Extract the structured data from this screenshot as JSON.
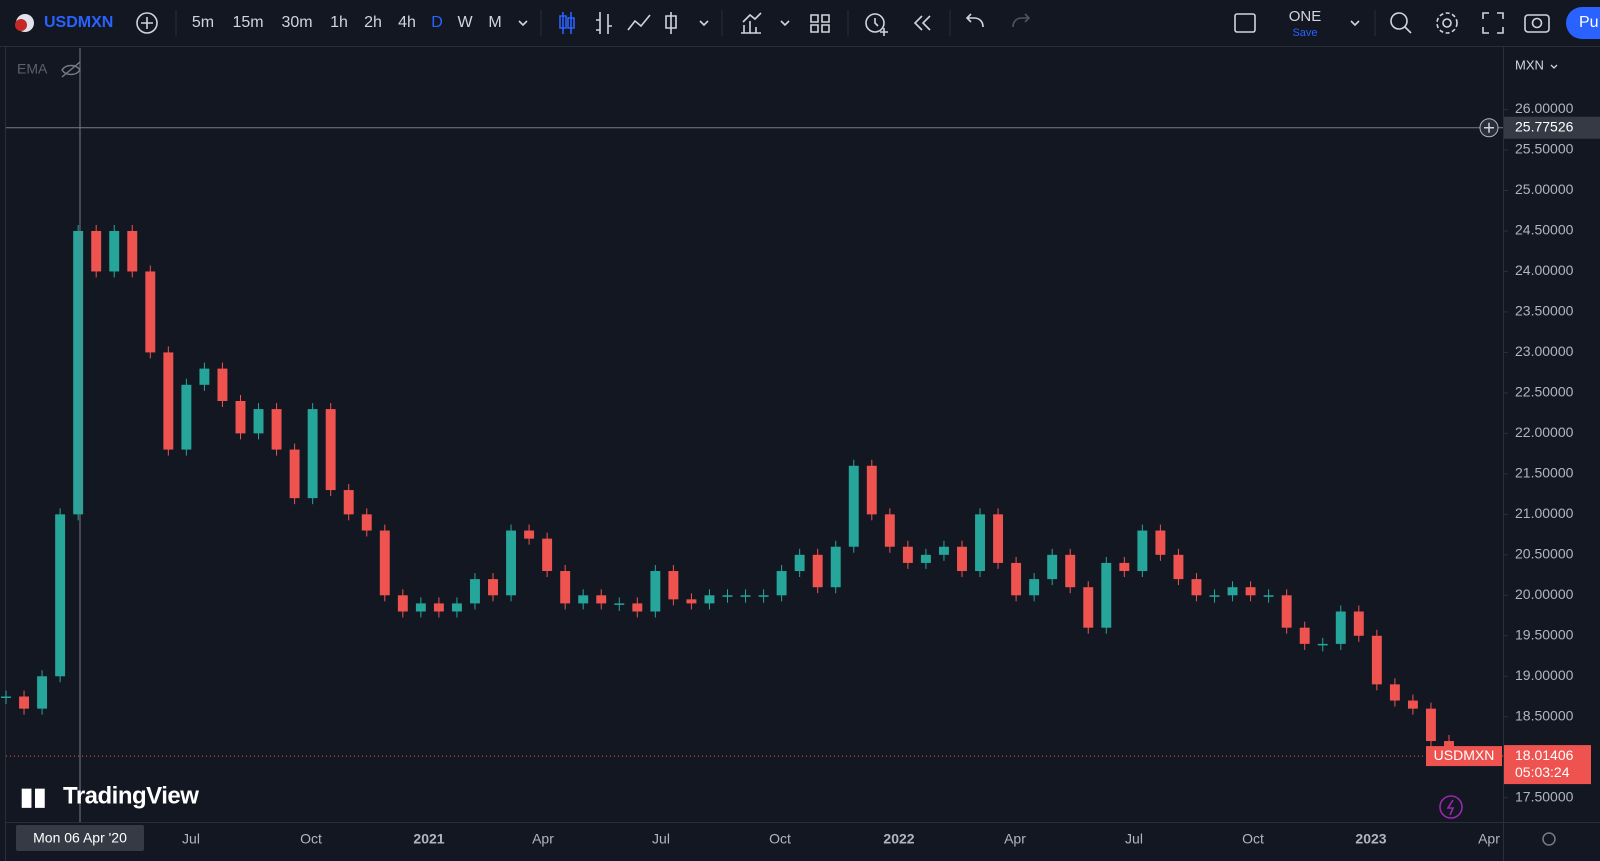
{
  "toolbar": {
    "symbol": "USDMXN",
    "intervals": [
      "5m",
      "15m",
      "30m",
      "1h",
      "2h",
      "4h",
      "D",
      "W",
      "M"
    ],
    "layout_name": "ONE",
    "save": "Save",
    "publish": "Pu"
  },
  "indicator": "EMA",
  "brand": "TradingView",
  "chart_data": {
    "type": "candlestick",
    "symbol": "USDMXN",
    "currency": "MXN",
    "crosshair_price": 25.77526,
    "crosshair_date": "Mon 06 Apr '20",
    "last_price": 18.01406,
    "countdown": "05:03:24",
    "up_color": "#26a69a",
    "down_color": "#ef5350",
    "values": [
      18.75,
      18.6,
      19.0,
      21.0,
      24.5,
      24.0,
      24.5,
      24.0,
      23.0,
      21.8,
      22.6,
      22.8,
      22.4,
      22.0,
      22.3,
      21.8,
      21.2,
      22.3,
      21.3,
      21.0,
      20.8,
      20.0,
      19.8,
      19.9,
      19.8,
      19.9,
      20.2,
      20.0,
      20.8,
      20.7,
      20.3,
      19.9,
      20.0,
      19.9,
      19.9,
      19.8,
      20.3,
      19.95,
      19.9,
      20.0,
      20.0,
      20.0,
      20.0,
      20.3,
      20.5,
      20.1,
      20.6,
      21.6,
      21.0,
      20.6,
      20.4,
      20.5,
      20.6,
      20.3,
      21.0,
      20.4,
      20.0,
      20.2,
      20.5,
      20.1,
      19.6,
      20.4,
      20.3,
      20.8,
      20.5,
      20.2,
      20.0,
      20.0,
      20.1,
      20.0,
      20.0,
      19.6,
      19.4,
      19.4,
      19.8,
      19.5,
      18.9,
      18.7,
      18.6,
      18.2,
      18.01
    ],
    "xticks": [
      "Jul",
      "Oct",
      "2021",
      "Apr",
      "Jul",
      "Oct",
      "2022",
      "Apr",
      "Jul",
      "Oct",
      "2023",
      "Apr"
    ],
    "ylim": [
      17.2,
      26.76
    ],
    "yticks": [
      {
        "value": 26,
        "label": "26.00000"
      },
      {
        "value": 25.5,
        "label": "25.50000"
      },
      {
        "value": 25,
        "label": "25.00000"
      },
      {
        "value": 24.5,
        "label": "24.50000"
      },
      {
        "value": 24,
        "label": "24.00000"
      },
      {
        "value": 23.5,
        "label": "23.50000"
      },
      {
        "value": 23,
        "label": "23.00000"
      },
      {
        "value": 22.5,
        "label": "22.50000"
      },
      {
        "value": 22,
        "label": "22.00000"
      },
      {
        "value": 21.5,
        "label": "21.50000"
      },
      {
        "value": 21,
        "label": "21.00000"
      },
      {
        "value": 20.5,
        "label": "20.50000"
      },
      {
        "value": 20,
        "label": "20.00000"
      },
      {
        "value": 19.5,
        "label": "19.50000"
      },
      {
        "value": 19,
        "label": "19.00000"
      },
      {
        "value": 18.5,
        "label": "18.50000"
      },
      {
        "value": 17.5,
        "label": "17.50000"
      }
    ]
  }
}
